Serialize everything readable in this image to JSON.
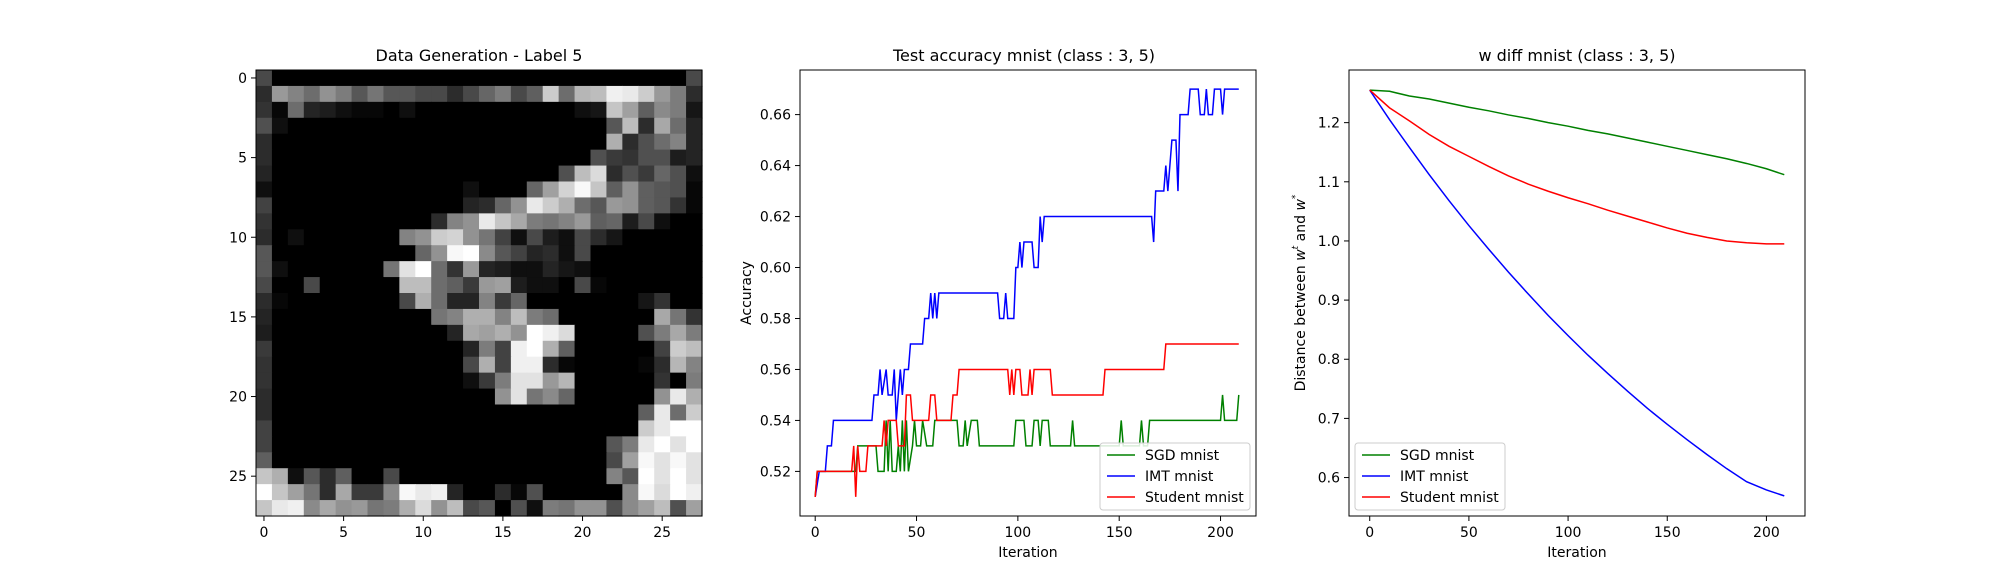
{
  "chart_data": [
    {
      "type": "heatmap",
      "title": "Data Generation - Label 5",
      "xlabel": "",
      "ylabel": "",
      "xticks": [
        "0",
        "5",
        "10",
        "15",
        "20",
        "25"
      ],
      "yticks": [
        "0",
        "5",
        "10",
        "15",
        "20",
        "25"
      ],
      "colormap": "gray",
      "grid": false,
      "rows_28x28_base36": [
        "a00000000000000000000000000a",
        "6lifkhcgccaa6aehadsfpqxwslh6",
        "71f5421102000000000023rmdjh3",
        "b200000000000000000000cq6nf5",
        "6000000000000000000000o6bfi5",
        "600000000000000000000b87bb45",
        "5000000000000000000bqu6b8eb2",
        "20000000000002000emtyrdkdcb1",
        "900000000000056ekwsofclkdc71",
        "700000000006ikwrnhgilde4a200",
        "602000000ikstkg92a42a6300000",
        "c000000000ekyzjc9562a0000000",
        "c2000000gvzf7l54225320000000",
        "a00a00000qqfd8lm4220a1000000",
        "610000000aof55i8e00000003700",
        "50000000000giooiqhf000000ng7",
        "4000000000005nmokzxu0000bhnh",
        "80000000000005h9xzod000009sq",
        "7000000000000ao9xx61000016pi",
        "700000000000028hvvlp0000070h",
        "600000000000000kvgje00000kwo",
        "600000000000000000000000dwfs",
        "900000000000000000000000swzz",
        "9000000000000000000000chwzvz",
        "d000000000000000000000amyvyv",
        "ro2c6d00a0000000000000iczvzv",
        "zrmg6n88jywx50061b00000jyuzx",
        "rwxjnklghoukqac0b2hgkkbjmqbm"
      ]
    },
    {
      "type": "line",
      "title": "Test accuracy mnist (class : 3, 5)",
      "xlabel": "Iteration",
      "ylabel": "Accuracy",
      "xlim": [
        -7.5,
        217.5
      ],
      "ylim": [
        0.5025,
        0.6775
      ],
      "xticks": [
        "0",
        "50",
        "100",
        "150",
        "200"
      ],
      "yticks": [
        "0.52",
        "0.54",
        "0.56",
        "0.58",
        "0.60",
        "0.62",
        "0.64",
        "0.66"
      ],
      "grid": false,
      "legend": "lower-right",
      "series": [
        {
          "name": "SGD mnist",
          "color": "#008000",
          "points": [
            [
              0,
              0.51
            ],
            [
              1,
              0.52
            ],
            [
              20,
              0.52
            ],
            [
              21,
              0.53
            ],
            [
              30,
              0.53
            ],
            [
              31,
              0.52
            ],
            [
              34,
              0.52
            ],
            [
              35,
              0.54
            ],
            [
              36,
              0.52
            ],
            [
              37,
              0.54
            ],
            [
              38,
              0.52
            ],
            [
              40,
              0.52
            ],
            [
              41,
              0.53
            ],
            [
              42,
              0.52
            ],
            [
              43,
              0.54
            ],
            [
              44,
              0.52
            ],
            [
              45,
              0.54
            ],
            [
              46,
              0.52
            ],
            [
              48,
              0.53
            ],
            [
              49,
              0.54
            ],
            [
              50,
              0.53
            ],
            [
              52,
              0.53
            ],
            [
              53,
              0.54
            ],
            [
              55,
              0.53
            ],
            [
              58,
              0.53
            ],
            [
              59,
              0.54
            ],
            [
              70,
              0.54
            ],
            [
              71,
              0.53
            ],
            [
              73,
              0.53
            ],
            [
              74,
              0.54
            ],
            [
              75,
              0.53
            ],
            [
              77,
              0.54
            ],
            [
              80,
              0.54
            ],
            [
              81,
              0.53
            ],
            [
              98,
              0.53
            ],
            [
              99,
              0.54
            ],
            [
              103,
              0.54
            ],
            [
              104,
              0.53
            ],
            [
              107,
              0.53
            ],
            [
              108,
              0.54
            ],
            [
              110,
              0.54
            ],
            [
              111,
              0.53
            ],
            [
              112,
              0.54
            ],
            [
              115,
              0.54
            ],
            [
              116,
              0.53
            ],
            [
              126,
              0.53
            ],
            [
              127,
              0.54
            ],
            [
              128,
              0.53
            ],
            [
              150,
              0.53
            ],
            [
              151,
              0.54
            ],
            [
              152,
              0.53
            ],
            [
              160,
              0.53
            ],
            [
              161,
              0.54
            ],
            [
              162,
              0.53
            ],
            [
              164,
              0.53
            ],
            [
              165,
              0.54
            ],
            [
              200,
              0.54
            ],
            [
              201,
              0.55
            ],
            [
              202,
              0.54
            ],
            [
              208,
              0.54
            ],
            [
              209,
              0.55
            ]
          ]
        },
        {
          "name": "IMT mnist",
          "color": "#0000ff",
          "points": [
            [
              0,
              0.51
            ],
            [
              2,
              0.52
            ],
            [
              5,
              0.52
            ],
            [
              6,
              0.53
            ],
            [
              8,
              0.53
            ],
            [
              9,
              0.54
            ],
            [
              28,
              0.54
            ],
            [
              29,
              0.55
            ],
            [
              31,
              0.55
            ],
            [
              32,
              0.56
            ],
            [
              33,
              0.55
            ],
            [
              35,
              0.56
            ],
            [
              36,
              0.55
            ],
            [
              38,
              0.55
            ],
            [
              39,
              0.56
            ],
            [
              40,
              0.54
            ],
            [
              41,
              0.55
            ],
            [
              42,
              0.56
            ],
            [
              43,
              0.55
            ],
            [
              44,
              0.56
            ],
            [
              46,
              0.56
            ],
            [
              47,
              0.57
            ],
            [
              53,
              0.57
            ],
            [
              54,
              0.58
            ],
            [
              56,
              0.58
            ],
            [
              57,
              0.59
            ],
            [
              58,
              0.58
            ],
            [
              59,
              0.59
            ],
            [
              60,
              0.58
            ],
            [
              61,
              0.59
            ],
            [
              90,
              0.59
            ],
            [
              91,
              0.58
            ],
            [
              93,
              0.58
            ],
            [
              94,
              0.59
            ],
            [
              95,
              0.58
            ],
            [
              98,
              0.58
            ],
            [
              99,
              0.6
            ],
            [
              100,
              0.6
            ],
            [
              101,
              0.61
            ],
            [
              102,
              0.6
            ],
            [
              103,
              0.61
            ],
            [
              107,
              0.61
            ],
            [
              108,
              0.6
            ],
            [
              110,
              0.6
            ],
            [
              111,
              0.62
            ],
            [
              112,
              0.61
            ],
            [
              113,
              0.62
            ],
            [
              166,
              0.62
            ],
            [
              167,
              0.61
            ],
            [
              168,
              0.63
            ],
            [
              172,
              0.63
            ],
            [
              173,
              0.64
            ],
            [
              174,
              0.63
            ],
            [
              175,
              0.64
            ],
            [
              176,
              0.65
            ],
            [
              178,
              0.65
            ],
            [
              179,
              0.63
            ],
            [
              180,
              0.66
            ],
            [
              184,
              0.66
            ],
            [
              185,
              0.67
            ],
            [
              189,
              0.67
            ],
            [
              190,
              0.66
            ],
            [
              192,
              0.66
            ],
            [
              193,
              0.67
            ],
            [
              194,
              0.66
            ],
            [
              196,
              0.66
            ],
            [
              197,
              0.67
            ],
            [
              200,
              0.67
            ],
            [
              201,
              0.66
            ],
            [
              202,
              0.67
            ],
            [
              209,
              0.67
            ]
          ]
        },
        {
          "name": "Student mnist",
          "color": "#ff0000",
          "points": [
            [
              0,
              0.51
            ],
            [
              1,
              0.52
            ],
            [
              18,
              0.52
            ],
            [
              19,
              0.53
            ],
            [
              20,
              0.51
            ],
            [
              21,
              0.53
            ],
            [
              22,
              0.52
            ],
            [
              25,
              0.52
            ],
            [
              26,
              0.53
            ],
            [
              33,
              0.53
            ],
            [
              34,
              0.54
            ],
            [
              35,
              0.53
            ],
            [
              36,
              0.54
            ],
            [
              40,
              0.54
            ],
            [
              41,
              0.53
            ],
            [
              44,
              0.53
            ],
            [
              45,
              0.55
            ],
            [
              47,
              0.55
            ],
            [
              48,
              0.54
            ],
            [
              56,
              0.54
            ],
            [
              57,
              0.55
            ],
            [
              59,
              0.55
            ],
            [
              60,
              0.54
            ],
            [
              67,
              0.54
            ],
            [
              68,
              0.55
            ],
            [
              70,
              0.55
            ],
            [
              71,
              0.56
            ],
            [
              95,
              0.56
            ],
            [
              96,
              0.55
            ],
            [
              97,
              0.56
            ],
            [
              98,
              0.55
            ],
            [
              99,
              0.56
            ],
            [
              101,
              0.56
            ],
            [
              102,
              0.55
            ],
            [
              105,
              0.55
            ],
            [
              106,
              0.56
            ],
            [
              107,
              0.55
            ],
            [
              108,
              0.56
            ],
            [
              116,
              0.56
            ],
            [
              117,
              0.55
            ],
            [
              142,
              0.55
            ],
            [
              143,
              0.56
            ],
            [
              172,
              0.56
            ],
            [
              173,
              0.57
            ],
            [
              209,
              0.57
            ]
          ]
        }
      ]
    },
    {
      "type": "line",
      "title": "w diff mnist (class : 3, 5)",
      "xlabel": "Iteration",
      "ylabel_prefix": "Distance between ",
      "ylabel_w": "w",
      "ylabel_t": "t",
      "ylabel_and": " and ",
      "ylabel_star": "*",
      "xlim": [
        -10.45,
        219.45
      ],
      "ylim": [
        0.535,
        1.289
      ],
      "xticks": [
        "0",
        "50",
        "100",
        "150",
        "200"
      ],
      "yticks": [
        "0.6",
        "0.7",
        "0.8",
        "0.9",
        "1.0",
        "1.1",
        "1.2"
      ],
      "grid": false,
      "legend": "lower-left",
      "series": [
        {
          "name": "SGD mnist",
          "color": "#008000",
          "points": [
            [
              0,
              1.255
            ],
            [
              10,
              1.253
            ],
            [
              20,
              1.245
            ],
            [
              30,
              1.24
            ],
            [
              40,
              1.233
            ],
            [
              50,
              1.226
            ],
            [
              60,
              1.22
            ],
            [
              70,
              1.213
            ],
            [
              80,
              1.207
            ],
            [
              90,
              1.2
            ],
            [
              100,
              1.194
            ],
            [
              110,
              1.187
            ],
            [
              120,
              1.181
            ],
            [
              130,
              1.174
            ],
            [
              140,
              1.167
            ],
            [
              150,
              1.16
            ],
            [
              160,
              1.153
            ],
            [
              170,
              1.146
            ],
            [
              180,
              1.139
            ],
            [
              190,
              1.131
            ],
            [
              200,
              1.122
            ],
            [
              209,
              1.112
            ]
          ]
        },
        {
          "name": "IMT mnist",
          "color": "#0000ff",
          "points": [
            [
              0,
              1.255
            ],
            [
              10,
              1.205
            ],
            [
              20,
              1.158
            ],
            [
              30,
              1.112
            ],
            [
              40,
              1.068
            ],
            [
              50,
              1.026
            ],
            [
              60,
              0.986
            ],
            [
              70,
              0.947
            ],
            [
              80,
              0.91
            ],
            [
              90,
              0.874
            ],
            [
              100,
              0.84
            ],
            [
              110,
              0.807
            ],
            [
              120,
              0.776
            ],
            [
              130,
              0.746
            ],
            [
              140,
              0.717
            ],
            [
              150,
              0.69
            ],
            [
              160,
              0.664
            ],
            [
              170,
              0.639
            ],
            [
              180,
              0.615
            ],
            [
              190,
              0.593
            ],
            [
              200,
              0.579
            ],
            [
              209,
              0.569
            ]
          ]
        },
        {
          "name": "Student mnist",
          "color": "#ff0000",
          "points": [
            [
              0,
              1.255
            ],
            [
              10,
              1.225
            ],
            [
              20,
              1.203
            ],
            [
              30,
              1.18
            ],
            [
              40,
              1.16
            ],
            [
              50,
              1.143
            ],
            [
              60,
              1.126
            ],
            [
              70,
              1.11
            ],
            [
              80,
              1.096
            ],
            [
              90,
              1.084
            ],
            [
              100,
              1.073
            ],
            [
              110,
              1.063
            ],
            [
              120,
              1.052
            ],
            [
              130,
              1.042
            ],
            [
              140,
              1.032
            ],
            [
              150,
              1.022
            ],
            [
              160,
              1.013
            ],
            [
              170,
              1.006
            ],
            [
              180,
              1.0
            ],
            [
              190,
              0.997
            ],
            [
              200,
              0.995
            ],
            [
              209,
              0.995
            ]
          ]
        }
      ]
    }
  ]
}
